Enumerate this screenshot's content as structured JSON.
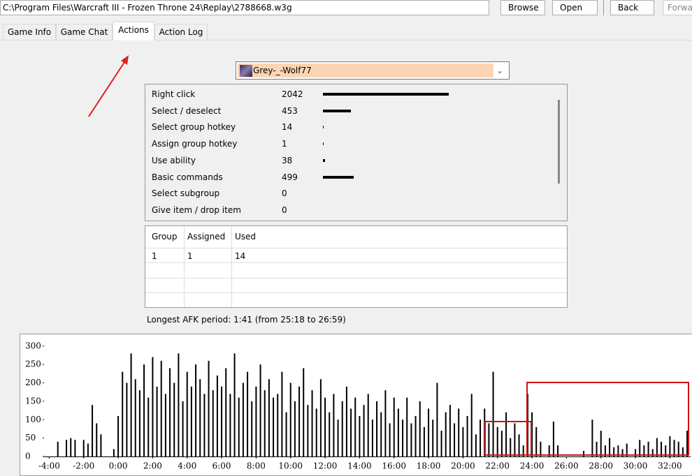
{
  "toolbar": {
    "path": "C:\\Program Files\\Warcraft III - Frozen Throne 24\\Replay\\2788668.w3g",
    "buttons": [
      "Browse",
      "Open",
      "Back",
      "Forward"
    ]
  },
  "tabs": [
    "Game Info",
    "Game Chat",
    "Actions",
    "Action Log"
  ],
  "player": "Grey-_-Wolf77",
  "actions": [
    {
      "name": "Right click",
      "count": 2042
    },
    {
      "name": "Select / deselect",
      "count": 453
    },
    {
      "name": "Select group hotkey",
      "count": 14
    },
    {
      "name": "Assign group hotkey",
      "count": 1
    },
    {
      "name": "Use ability",
      "count": 38
    },
    {
      "name": "Basic commands",
      "count": 499
    },
    {
      "name": "Select subgroup",
      "count": 0
    },
    {
      "name": "Give item / drop item",
      "count": 0
    }
  ],
  "groups": {
    "columns": [
      "Group",
      "Assigned",
      "Used"
    ],
    "rows": [
      [
        1,
        1,
        14
      ]
    ]
  },
  "afk": "Longest AFK period: 1:41 (from 25:18 to 26:59)",
  "chart_data": {
    "type": "bar",
    "color": "#000000",
    "x": [
      -3.75,
      -3.5,
      -3.25,
      -3.0,
      -2.75,
      -2.5,
      -2.25,
      -2.0,
      -1.75,
      -1.5,
      -1.25,
      -1.0,
      -0.75,
      -0.5,
      -0.25,
      0.0,
      0.25,
      0.5,
      0.75,
      1.0,
      1.25,
      1.5,
      1.75,
      2.0,
      2.25,
      2.5,
      2.75,
      3.0,
      3.25,
      3.5,
      3.75,
      4.0,
      4.25,
      4.5,
      4.75,
      5.0,
      5.25,
      5.5,
      5.75,
      6.0,
      6.25,
      6.5,
      6.75,
      7.0,
      7.25,
      7.5,
      7.75,
      8.0,
      8.25,
      8.5,
      8.75,
      9.0,
      9.25,
      9.5,
      9.75,
      10.0,
      10.25,
      10.5,
      10.75,
      11.0,
      11.25,
      11.5,
      11.75,
      12.0,
      12.25,
      12.5,
      12.75,
      13.0,
      13.25,
      13.5,
      13.75,
      14.0,
      14.25,
      14.5,
      14.75,
      15.0,
      15.25,
      15.5,
      15.75,
      16.0,
      16.25,
      16.5,
      16.75,
      17.0,
      17.25,
      17.5,
      17.75,
      18.0,
      18.25,
      18.5,
      18.75,
      19.0,
      19.25,
      19.5,
      19.75,
      20.0,
      20.25,
      20.5,
      20.75,
      21.0,
      21.25,
      21.5,
      21.75,
      22.0,
      22.25,
      22.5,
      22.75,
      23.0,
      23.25,
      23.5,
      23.75,
      24.0,
      24.25,
      24.5,
      24.75,
      25.0,
      25.25,
      25.5,
      25.75,
      26.0,
      26.25,
      26.5,
      26.75,
      27.0,
      27.25,
      27.5,
      27.75,
      28.0,
      28.25,
      28.5,
      28.75,
      29.0,
      29.25,
      29.5,
      29.75,
      30.0,
      30.25,
      30.5,
      30.75,
      31.0,
      31.25,
      31.5,
      31.75,
      32.0,
      32.25,
      32.5,
      32.75,
      33.0
    ],
    "values": [
      0,
      40,
      0,
      45,
      50,
      45,
      0,
      45,
      35,
      140,
      90,
      60,
      0,
      0,
      20,
      110,
      230,
      200,
      280,
      210,
      180,
      250,
      160,
      270,
      190,
      260,
      170,
      240,
      200,
      280,
      150,
      230,
      190,
      250,
      210,
      170,
      260,
      180,
      220,
      190,
      240,
      170,
      280,
      160,
      200,
      230,
      150,
      190,
      250,
      180,
      210,
      160,
      170,
      230,
      120,
      200,
      150,
      190,
      240,
      140,
      180,
      130,
      210,
      160,
      120,
      170,
      100,
      150,
      190,
      130,
      160,
      110,
      140,
      170,
      100,
      150,
      120,
      180,
      90,
      160,
      130,
      100,
      160,
      90,
      110,
      150,
      80,
      130,
      100,
      200,
      70,
      120,
      140,
      90,
      130,
      80,
      110,
      170,
      60,
      100,
      130,
      90,
      230,
      80,
      70,
      120,
      50,
      90,
      60,
      30,
      170,
      120,
      80,
      40,
      0,
      30,
      95,
      30,
      0,
      0,
      0,
      0,
      0,
      15,
      0,
      100,
      40,
      70,
      30,
      50,
      25,
      30,
      20,
      35,
      0,
      20,
      45,
      30,
      40,
      20,
      50,
      40,
      30,
      55,
      45,
      40,
      25,
      70
    ],
    "xlim": [
      -4.3,
      33.2
    ],
    "ylim": [
      0,
      330
    ],
    "yticks": [
      0,
      50,
      100,
      150,
      200,
      250,
      300
    ],
    "xticks": [
      {
        "value": -4,
        "label": "-4:00"
      },
      {
        "value": -2,
        "label": "-2:00"
      },
      {
        "value": 0,
        "label": "0:00"
      },
      {
        "value": 2,
        "label": "2:00"
      },
      {
        "value": 4,
        "label": "4:00"
      },
      {
        "value": 6,
        "label": "6:00"
      },
      {
        "value": 8,
        "label": "8:00"
      },
      {
        "value": 10,
        "label": "10:00"
      },
      {
        "value": 12,
        "label": "12:00"
      },
      {
        "value": 14,
        "label": "14:00"
      },
      {
        "value": 16,
        "label": "16:00"
      },
      {
        "value": 18,
        "label": "18:00"
      },
      {
        "value": 20,
        "label": "20:00"
      },
      {
        "value": 22,
        "label": "22:00"
      },
      {
        "value": 24,
        "label": "24:00"
      },
      {
        "value": 26,
        "label": "26:00"
      },
      {
        "value": 28,
        "label": "28:00"
      },
      {
        "value": 30,
        "label": "30:00"
      },
      {
        "value": 32,
        "label": "32:00"
      }
    ]
  }
}
